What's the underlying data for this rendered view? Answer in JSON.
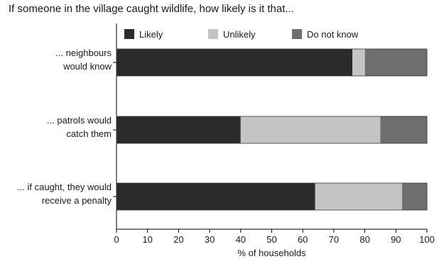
{
  "chart_data": {
    "type": "bar",
    "orientation": "horizontal",
    "stacked": true,
    "title": "If someone in the village caught wildlife, how likely is it that...",
    "xlabel": "% of households",
    "ylabel": "",
    "xlim": [
      0,
      100
    ],
    "xticks": [
      0,
      10,
      20,
      30,
      40,
      50,
      60,
      70,
      80,
      90,
      100
    ],
    "grid": false,
    "legend_position": "top",
    "categories": [
      [
        "... neighbours",
        "would know"
      ],
      [
        "... patrols would",
        "catch them"
      ],
      [
        "... if caught, they would",
        "receive a penalty"
      ]
    ],
    "series": [
      {
        "name": "Likely",
        "color": "#2b2b2b",
        "values": [
          76,
          40,
          64
        ]
      },
      {
        "name": "Unlikely",
        "color": "#c4c4c4",
        "values": [
          4,
          45,
          28
        ]
      },
      {
        "name": "Do not know",
        "color": "#6e6e6e",
        "values": [
          20,
          15,
          8
        ]
      }
    ]
  }
}
